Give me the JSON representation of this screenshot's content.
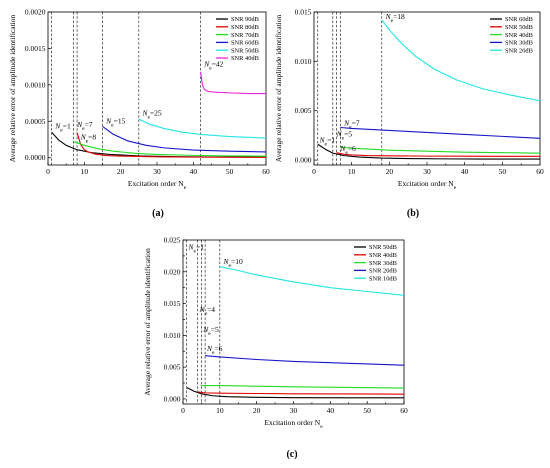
{
  "chart_data": [
    {
      "type": "line",
      "caption": "(a)",
      "xlabel": "Excitation order N",
      "xlabel_sub": "e",
      "ylabel": "Average relative error of amplitude identification",
      "xlim": [
        0,
        60
      ],
      "ylim": [
        -0.0001,
        0.002
      ],
      "xticks": [
        0,
        10,
        20,
        30,
        40,
        50,
        60
      ],
      "yticks": [
        0.0,
        0.0005,
        0.001,
        0.0015,
        0.002
      ],
      "ytick_labels": [
        "0.0000",
        "0.0005",
        "0.0010",
        "0.0015",
        "0.0020"
      ],
      "legend_position": "top-right",
      "series": [
        {
          "name": "SNR 90dB",
          "color": "#000000",
          "start_x": 1,
          "x": [
            1,
            3,
            5,
            8,
            12,
            17,
            25,
            35,
            45,
            60
          ],
          "y": [
            0.00035,
            0.00024,
            0.00017,
            0.00011,
            7e-05,
            4.5e-05,
            2.5e-05,
            1.5e-05,
            1e-05,
            8e-06
          ]
        },
        {
          "name": "SNR 80dB",
          "color": "#e00000",
          "start_x": 8,
          "x": [
            8,
            9,
            10,
            11,
            13,
            16,
            20,
            30,
            40,
            60
          ],
          "y": [
            0.00034,
            0.00018,
            0.00011,
            8e-05,
            5e-05,
            3e-05,
            2.2e-05,
            1.2e-05,
            8e-06,
            5e-06
          ]
        },
        {
          "name": "SNR 70dB",
          "color": "#22dd22",
          "start_x": 7,
          "x": [
            7,
            10,
            14,
            18,
            24,
            30,
            40,
            50,
            60
          ],
          "y": [
            0.00022,
            0.00017,
            0.00012,
            9e-05,
            6e-05,
            4.5e-05,
            3.2e-05,
            2.5e-05,
            2.1e-05
          ]
        },
        {
          "name": "SNR 60dB",
          "color": "#1515cc",
          "start_x": 15,
          "x": [
            15,
            18,
            22,
            27,
            32,
            40,
            50,
            60
          ],
          "y": [
            0.00043,
            0.00032,
            0.00023,
            0.00017,
            0.000135,
            0.000105,
            9e-05,
            8e-05
          ]
        },
        {
          "name": "SNR 50dB",
          "color": "#22e5e5",
          "start_x": 25,
          "x": [
            25,
            28,
            32,
            37,
            42,
            50,
            60
          ],
          "y": [
            0.00053,
            0.00046,
            0.0004,
            0.00035,
            0.00032,
            0.00029,
            0.00027
          ]
        },
        {
          "name": "SNR 40dB",
          "color": "#ee22dd",
          "start_x": 42,
          "x": [
            42,
            42.5,
            43,
            44,
            46,
            50,
            55,
            60
          ],
          "y": [
            0.00118,
            0.001,
            0.00094,
            0.00091,
            0.0009,
            0.00089,
            0.00088,
            0.00088
          ]
        }
      ],
      "vlines": [
        1,
        7,
        8,
        15,
        25,
        42
      ],
      "annotations": [
        {
          "label": "N",
          "sub": "e",
          "value": "=1",
          "x": 2,
          "y": 0.0004
        },
        {
          "label": "N",
          "sub": "e",
          "value": "=7",
          "x": 8,
          "y": 0.00042
        },
        {
          "label": "N",
          "sub": "e",
          "value": "=8",
          "x": 9,
          "y": 0.00025
        },
        {
          "label": "N",
          "sub": "e",
          "value": "=15",
          "x": 16,
          "y": 0.00047
        },
        {
          "label": "N",
          "sub": "e",
          "value": "=25",
          "x": 26,
          "y": 0.00058
        },
        {
          "label": "N",
          "sub": "e",
          "value": "=42",
          "x": 43,
          "y": 0.00125
        }
      ]
    },
    {
      "type": "line",
      "caption": "(b)",
      "xlabel": "Excitation order N",
      "xlabel_sub": "e",
      "ylabel": "Average relative error of amplitude identification",
      "xlim": [
        0,
        60
      ],
      "ylim": [
        -0.0005,
        0.015
      ],
      "xticks": [
        0,
        10,
        20,
        30,
        40,
        50,
        60
      ],
      "yticks": [
        0.0,
        0.005,
        0.01,
        0.015
      ],
      "ytick_labels": [
        "0.000",
        "0.005",
        "0.010",
        "0.015"
      ],
      "legend_position": "top-right",
      "series": [
        {
          "name": "SNR 60dB",
          "color": "#000000",
          "start_x": 1,
          "x": [
            1,
            3,
            5,
            8,
            12,
            18,
            25,
            35,
            45,
            60
          ],
          "y": [
            0.0016,
            0.0011,
            0.0007,
            0.00045,
            0.0003,
            0.0002,
            0.00015,
            0.00012,
            0.0001,
            0.0001
          ]
        },
        {
          "name": "SNR 50dB",
          "color": "#e00000",
          "start_x": 6,
          "x": [
            6,
            8,
            10,
            14,
            20,
            30,
            40,
            50,
            60
          ],
          "y": [
            0.00075,
            0.00058,
            0.00052,
            0.00046,
            0.00043,
            0.0004,
            0.00039,
            0.00038,
            0.00038
          ]
        },
        {
          "name": "SNR 40dB",
          "color": "#22dd22",
          "start_x": 7,
          "x": [
            7,
            10,
            15,
            20,
            30,
            40,
            50,
            60
          ],
          "y": [
            0.0013,
            0.0012,
            0.0011,
            0.001,
            0.0009,
            0.0008,
            0.00075,
            0.0007
          ]
        },
        {
          "name": "SNR 30dB",
          "color": "#1515cc",
          "start_x": 7,
          "x": [
            7,
            10,
            15,
            20,
            30,
            40,
            50,
            60
          ],
          "y": [
            0.0033,
            0.0032,
            0.0031,
            0.003,
            0.0028,
            0.0026,
            0.0024,
            0.0022
          ]
        },
        {
          "name": "SNR 20dB",
          "color": "#22e5e5",
          "start_x": 18,
          "x": [
            18,
            20,
            23,
            27,
            32,
            38,
            45,
            52,
            60
          ],
          "y": [
            0.0142,
            0.0132,
            0.0119,
            0.0105,
            0.0092,
            0.0081,
            0.0072,
            0.0066,
            0.006
          ]
        }
      ],
      "vlines": [
        1,
        5,
        6,
        7,
        18
      ],
      "annotations": [
        {
          "label": "N",
          "sub": "e",
          "value": "=1",
          "x": 1.5,
          "y": 0.0018
        },
        {
          "label": "N",
          "sub": "e",
          "value": "=5",
          "x": 6,
          "y": 0.0024
        },
        {
          "label": "N",
          "sub": "e",
          "value": "=6",
          "x": 7,
          "y": 0.0009
        },
        {
          "label": "N",
          "sub": "e",
          "value": "=7",
          "x": 8,
          "y": 0.0035
        },
        {
          "label": "N",
          "sub": "e",
          "value": "=18",
          "x": 19,
          "y": 0.0143
        }
      ]
    },
    {
      "type": "line",
      "caption": "(c)",
      "xlabel": "Excitation order N",
      "xlabel_sub": "e",
      "ylabel": "Average relative error of amplitude identification",
      "xlim": [
        0,
        60
      ],
      "ylim": [
        -0.0008,
        0.025
      ],
      "xticks": [
        0,
        10,
        20,
        30,
        40,
        50,
        60
      ],
      "yticks": [
        0.0,
        0.0025,
        0.005,
        0.0075,
        0.01,
        0.0125,
        0.015,
        0.0175,
        0.02,
        0.0225,
        0.025
      ],
      "ytick_labels": [
        "0.000",
        "",
        "0.005",
        "",
        "0.010",
        "",
        "0.015",
        "",
        "0.020",
        "",
        "0.025"
      ],
      "legend_position": "top-right",
      "series": [
        {
          "name": "SNR 50dB",
          "color": "#000000",
          "start_x": 1,
          "x": [
            1,
            3,
            5,
            8,
            12,
            20,
            30,
            45,
            60
          ],
          "y": [
            0.0018,
            0.0012,
            0.0008,
            0.0005,
            0.00035,
            0.00025,
            0.0002,
            0.00018,
            0.00017
          ]
        },
        {
          "name": "SNR 40dB",
          "color": "#e00000",
          "start_x": 4,
          "x": [
            4,
            6,
            10,
            20,
            30,
            45,
            60
          ],
          "y": [
            0.0011,
            0.00095,
            0.0009,
            0.00085,
            0.0008,
            0.00078,
            0.00075
          ]
        },
        {
          "name": "SNR 30dB",
          "color": "#22dd22",
          "start_x": 5,
          "x": [
            5,
            10,
            20,
            30,
            45,
            60
          ],
          "y": [
            0.0021,
            0.0021,
            0.002,
            0.0019,
            0.0018,
            0.0017
          ]
        },
        {
          "name": "SNR 20dB",
          "color": "#1515cc",
          "start_x": 6,
          "x": [
            6,
            10,
            20,
            30,
            45,
            60
          ],
          "y": [
            0.0068,
            0.0066,
            0.0062,
            0.0059,
            0.0056,
            0.0053
          ]
        },
        {
          "name": "SNR 10dB",
          "color": "#22e5e5",
          "start_x": 10,
          "x": [
            10,
            15,
            20,
            30,
            40,
            50,
            60
          ],
          "y": [
            0.0208,
            0.0202,
            0.0195,
            0.0184,
            0.0175,
            0.0169,
            0.0163
          ]
        }
      ],
      "vlines": [
        1,
        4,
        5,
        6,
        10
      ],
      "annotations": [
        {
          "label": "N",
          "sub": "e",
          "value": "=1",
          "x": 1.5,
          "y": 0.0235
        },
        {
          "label": "N",
          "sub": "e",
          "value": "=4",
          "x": 4.5,
          "y": 0.0137
        },
        {
          "label": "N",
          "sub": "e",
          "value": "=5",
          "x": 5.5,
          "y": 0.0105
        },
        {
          "label": "N",
          "sub": "e",
          "value": "=6",
          "x": 6.5,
          "y": 0.0075
        },
        {
          "label": "N",
          "sub": "e",
          "value": "=10",
          "x": 11,
          "y": 0.0212
        }
      ]
    }
  ]
}
